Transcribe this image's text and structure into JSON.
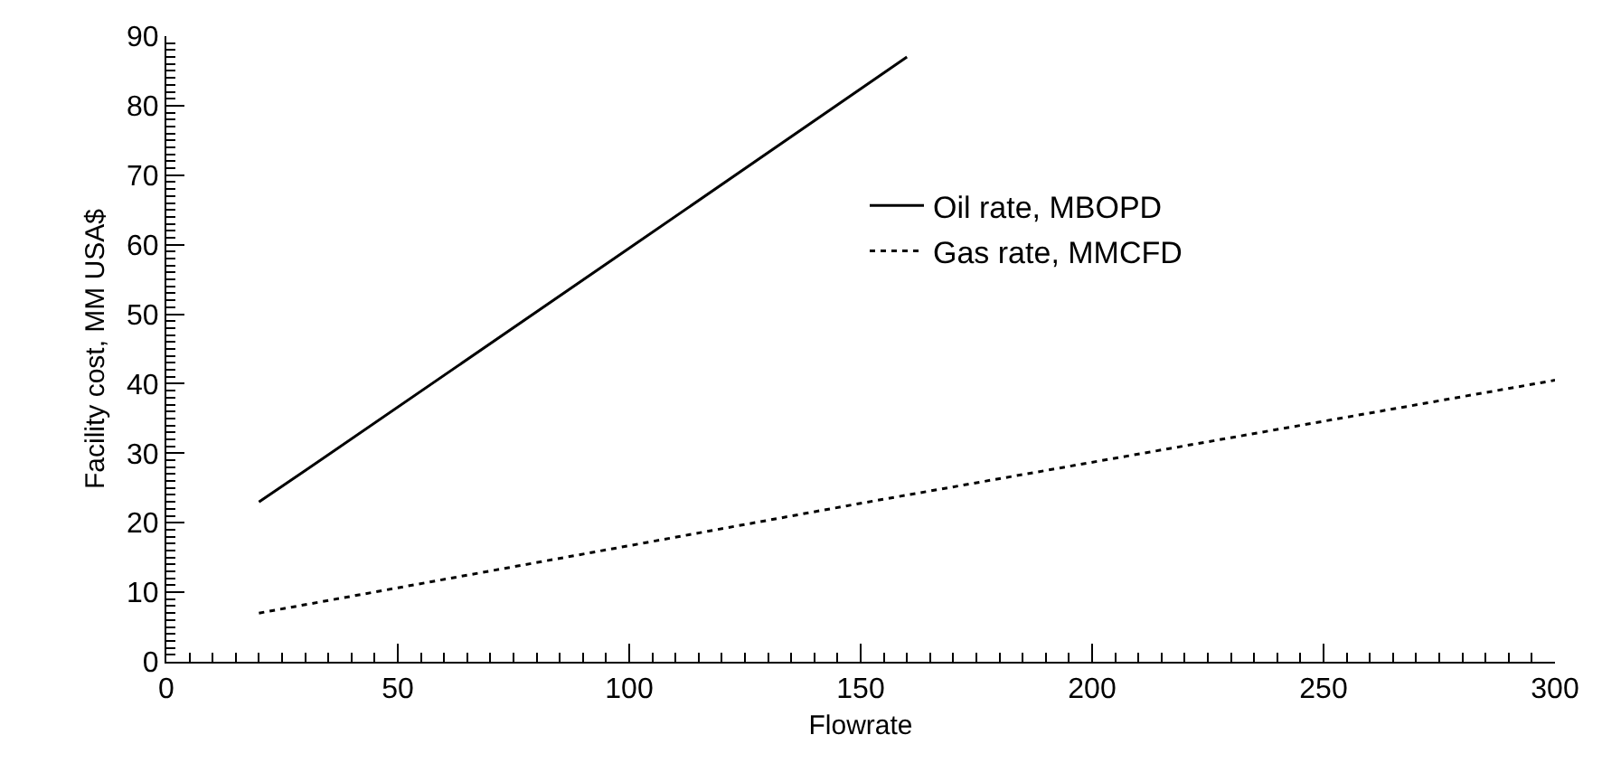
{
  "chart_data": {
    "type": "line",
    "xlabel": "Flowrate",
    "ylabel": "Facility cost, MM USA$",
    "xlim": [
      0,
      300
    ],
    "xticks": [
      0,
      50,
      100,
      150,
      200,
      250,
      300
    ],
    "ylim": [
      0,
      90
    ],
    "yticks": [
      0,
      10,
      20,
      30,
      40,
      50,
      60,
      70,
      80,
      90
    ],
    "grid": false,
    "legend": "top right",
    "marker": "none",
    "series": [
      {
        "name": "Oil rate, MBOPD",
        "color": "#000000",
        "line_style": "solid",
        "x": [
          20,
          30,
          100,
          160
        ],
        "values": [
          23,
          27.5,
          59.5,
          87
        ]
      },
      {
        "name": "Gas rate, MMCFD",
        "color": "#000000",
        "line_style": "dotted",
        "x": [
          20,
          100,
          150,
          300
        ],
        "values": [
          7,
          16.7,
          22.8,
          40.5
        ]
      }
    ]
  }
}
